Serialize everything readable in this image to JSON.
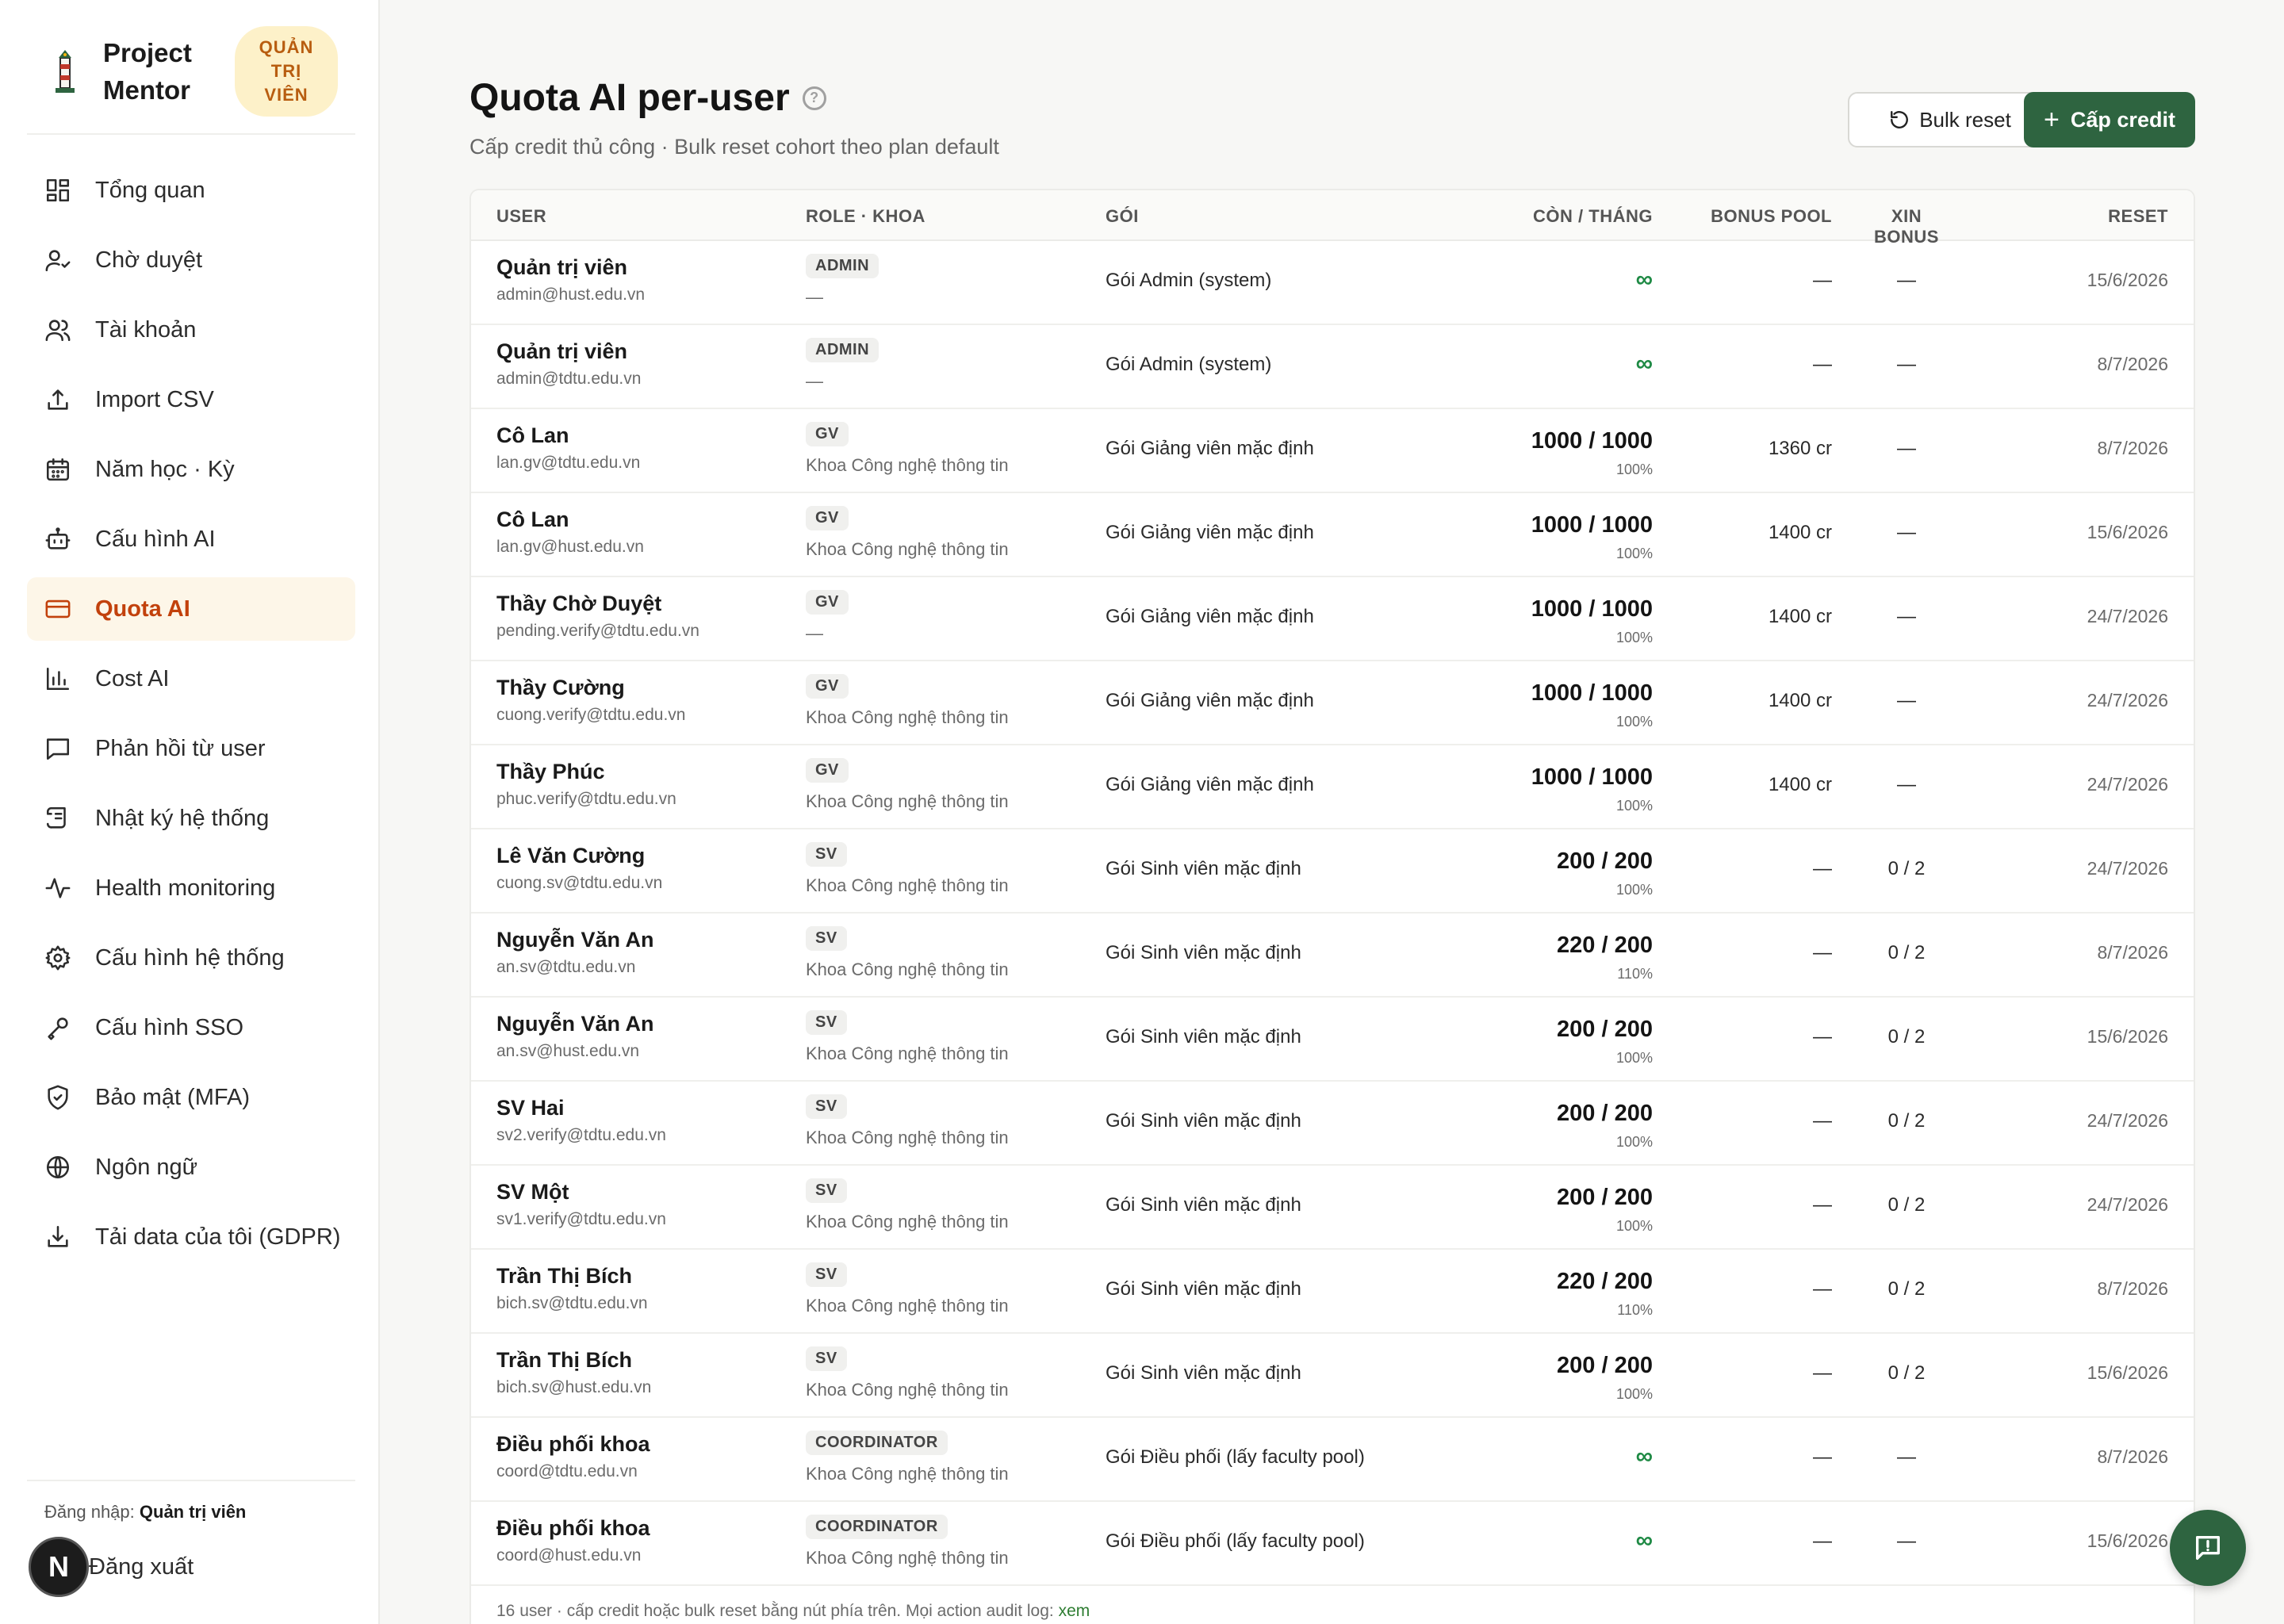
{
  "brand": {
    "name": "Project Mentor",
    "badge": "QUẢN TRỊ VIÊN"
  },
  "nav": [
    {
      "label": "Tổng quan",
      "icon": "dashboard-icon",
      "active": false
    },
    {
      "label": "Chờ duyệt",
      "icon": "user-check-icon",
      "active": false
    },
    {
      "label": "Tài khoản",
      "icon": "users-icon",
      "active": false
    },
    {
      "label": "Import CSV",
      "icon": "upload-icon",
      "active": false
    },
    {
      "label": "Năm học · Kỳ",
      "icon": "calendar-icon",
      "active": false
    },
    {
      "label": "Cấu hình AI",
      "icon": "bot-icon",
      "active": false
    },
    {
      "label": "Quota AI",
      "icon": "credit-card-icon",
      "active": true
    },
    {
      "label": "Cost AI",
      "icon": "bar-chart-icon",
      "active": false
    },
    {
      "label": "Phản hồi từ user",
      "icon": "message-icon",
      "active": false
    },
    {
      "label": "Nhật ký hệ thống",
      "icon": "scroll-icon",
      "active": false
    },
    {
      "label": "Health monitoring",
      "icon": "activity-icon",
      "active": false
    },
    {
      "label": "Cấu hình hệ thống",
      "icon": "gear-icon",
      "active": false
    },
    {
      "label": "Cấu hình SSO",
      "icon": "key-icon",
      "active": false
    },
    {
      "label": "Bảo mật (MFA)",
      "icon": "shield-icon",
      "active": false
    },
    {
      "label": "Ngôn ngữ",
      "icon": "globe-icon",
      "active": false
    },
    {
      "label": "Tải data của tôi (GDPR)",
      "icon": "download-icon",
      "active": false
    }
  ],
  "session": {
    "login_prefix": "Đăng nhập:",
    "login_user": "Quản trị viên",
    "logout": "Đăng xuất",
    "avatar_letter": "N"
  },
  "header": {
    "title": "Quota AI per-user",
    "subtitle": "Cấp credit thủ công · Bulk reset cohort theo plan default",
    "bulk_reset": "Bulk reset",
    "grant_credit": "Cấp credit"
  },
  "table": {
    "columns": {
      "user": "USER",
      "role": "ROLE · KHOA",
      "plan": "GÓI",
      "remaining": "CÒN / THÁNG",
      "bonus": "BONUS POOL",
      "xin": "XIN BONUS",
      "reset": "RESET"
    },
    "rows": [
      {
        "name": "Quản trị viên",
        "email": "admin@hust.edu.vn",
        "role": "ADMIN",
        "dept": "—",
        "plan": "Gói Admin (system)",
        "quota": "∞",
        "pct": "",
        "bonus": "—",
        "xin": "—",
        "reset": "15/6/2026"
      },
      {
        "name": "Quản trị viên",
        "email": "admin@tdtu.edu.vn",
        "role": "ADMIN",
        "dept": "—",
        "plan": "Gói Admin (system)",
        "quota": "∞",
        "pct": "",
        "bonus": "—",
        "xin": "—",
        "reset": "8/7/2026"
      },
      {
        "name": "Cô Lan",
        "email": "lan.gv@tdtu.edu.vn",
        "role": "GV",
        "dept": "Khoa Công nghệ thông tin",
        "plan": "Gói Giảng viên mặc định",
        "quota": "1000 / 1000",
        "pct": "100%",
        "bonus": "1360 cr",
        "xin": "—",
        "reset": "8/7/2026"
      },
      {
        "name": "Cô Lan",
        "email": "lan.gv@hust.edu.vn",
        "role": "GV",
        "dept": "Khoa Công nghệ thông tin",
        "plan": "Gói Giảng viên mặc định",
        "quota": "1000 / 1000",
        "pct": "100%",
        "bonus": "1400 cr",
        "xin": "—",
        "reset": "15/6/2026"
      },
      {
        "name": "Thầy Chờ Duyệt",
        "email": "pending.verify@tdtu.edu.vn",
        "role": "GV",
        "dept": "—",
        "plan": "Gói Giảng viên mặc định",
        "quota": "1000 / 1000",
        "pct": "100%",
        "bonus": "1400 cr",
        "xin": "—",
        "reset": "24/7/2026"
      },
      {
        "name": "Thầy Cường",
        "email": "cuong.verify@tdtu.edu.vn",
        "role": "GV",
        "dept": "Khoa Công nghệ thông tin",
        "plan": "Gói Giảng viên mặc định",
        "quota": "1000 / 1000",
        "pct": "100%",
        "bonus": "1400 cr",
        "xin": "—",
        "reset": "24/7/2026"
      },
      {
        "name": "Thầy Phúc",
        "email": "phuc.verify@tdtu.edu.vn",
        "role": "GV",
        "dept": "Khoa Công nghệ thông tin",
        "plan": "Gói Giảng viên mặc định",
        "quota": "1000 / 1000",
        "pct": "100%",
        "bonus": "1400 cr",
        "xin": "—",
        "reset": "24/7/2026"
      },
      {
        "name": "Lê Văn Cường",
        "email": "cuong.sv@tdtu.edu.vn",
        "role": "SV",
        "dept": "Khoa Công nghệ thông tin",
        "plan": "Gói Sinh viên mặc định",
        "quota": "200 / 200",
        "pct": "100%",
        "bonus": "—",
        "xin": "0 / 2",
        "reset": "24/7/2026"
      },
      {
        "name": "Nguyễn Văn An",
        "email": "an.sv@tdtu.edu.vn",
        "role": "SV",
        "dept": "Khoa Công nghệ thông tin",
        "plan": "Gói Sinh viên mặc định",
        "quota": "220 / 200",
        "pct": "110%",
        "bonus": "—",
        "xin": "0 / 2",
        "reset": "8/7/2026"
      },
      {
        "name": "Nguyễn Văn An",
        "email": "an.sv@hust.edu.vn",
        "role": "SV",
        "dept": "Khoa Công nghệ thông tin",
        "plan": "Gói Sinh viên mặc định",
        "quota": "200 / 200",
        "pct": "100%",
        "bonus": "—",
        "xin": "0 / 2",
        "reset": "15/6/2026"
      },
      {
        "name": "SV Hai",
        "email": "sv2.verify@tdtu.edu.vn",
        "role": "SV",
        "dept": "Khoa Công nghệ thông tin",
        "plan": "Gói Sinh viên mặc định",
        "quota": "200 / 200",
        "pct": "100%",
        "bonus": "—",
        "xin": "0 / 2",
        "reset": "24/7/2026"
      },
      {
        "name": "SV Một",
        "email": "sv1.verify@tdtu.edu.vn",
        "role": "SV",
        "dept": "Khoa Công nghệ thông tin",
        "plan": "Gói Sinh viên mặc định",
        "quota": "200 / 200",
        "pct": "100%",
        "bonus": "—",
        "xin": "0 / 2",
        "reset": "24/7/2026"
      },
      {
        "name": "Trần Thị Bích",
        "email": "bich.sv@tdtu.edu.vn",
        "role": "SV",
        "dept": "Khoa Công nghệ thông tin",
        "plan": "Gói Sinh viên mặc định",
        "quota": "220 / 200",
        "pct": "110%",
        "bonus": "—",
        "xin": "0 / 2",
        "reset": "8/7/2026"
      },
      {
        "name": "Trần Thị Bích",
        "email": "bich.sv@hust.edu.vn",
        "role": "SV",
        "dept": "Khoa Công nghệ thông tin",
        "plan": "Gói Sinh viên mặc định",
        "quota": "200 / 200",
        "pct": "100%",
        "bonus": "—",
        "xin": "0 / 2",
        "reset": "15/6/2026"
      },
      {
        "name": "Điều phối khoa",
        "email": "coord@tdtu.edu.vn",
        "role": "COORDINATOR",
        "dept": "Khoa Công nghệ thông tin",
        "plan": "Gói Điều phối (lấy faculty pool)",
        "quota": "∞",
        "pct": "",
        "bonus": "—",
        "xin": "—",
        "reset": "8/7/2026"
      },
      {
        "name": "Điều phối khoa",
        "email": "coord@hust.edu.vn",
        "role": "COORDINATOR",
        "dept": "Khoa Công nghệ thông tin",
        "plan": "Gói Điều phối (lấy faculty pool)",
        "quota": "∞",
        "pct": "",
        "bonus": "—",
        "xin": "—",
        "reset": "15/6/2026"
      }
    ],
    "footer_text": "16 user · cấp credit hoặc bulk reset bằng nút phía trên. Mọi action audit log:",
    "footer_link": "xem"
  },
  "colors": {
    "accent": "#2e6440",
    "active_nav_bg": "#fdf6e8",
    "active_nav_text": "#c2410c",
    "infinity": "#1f8a45"
  }
}
